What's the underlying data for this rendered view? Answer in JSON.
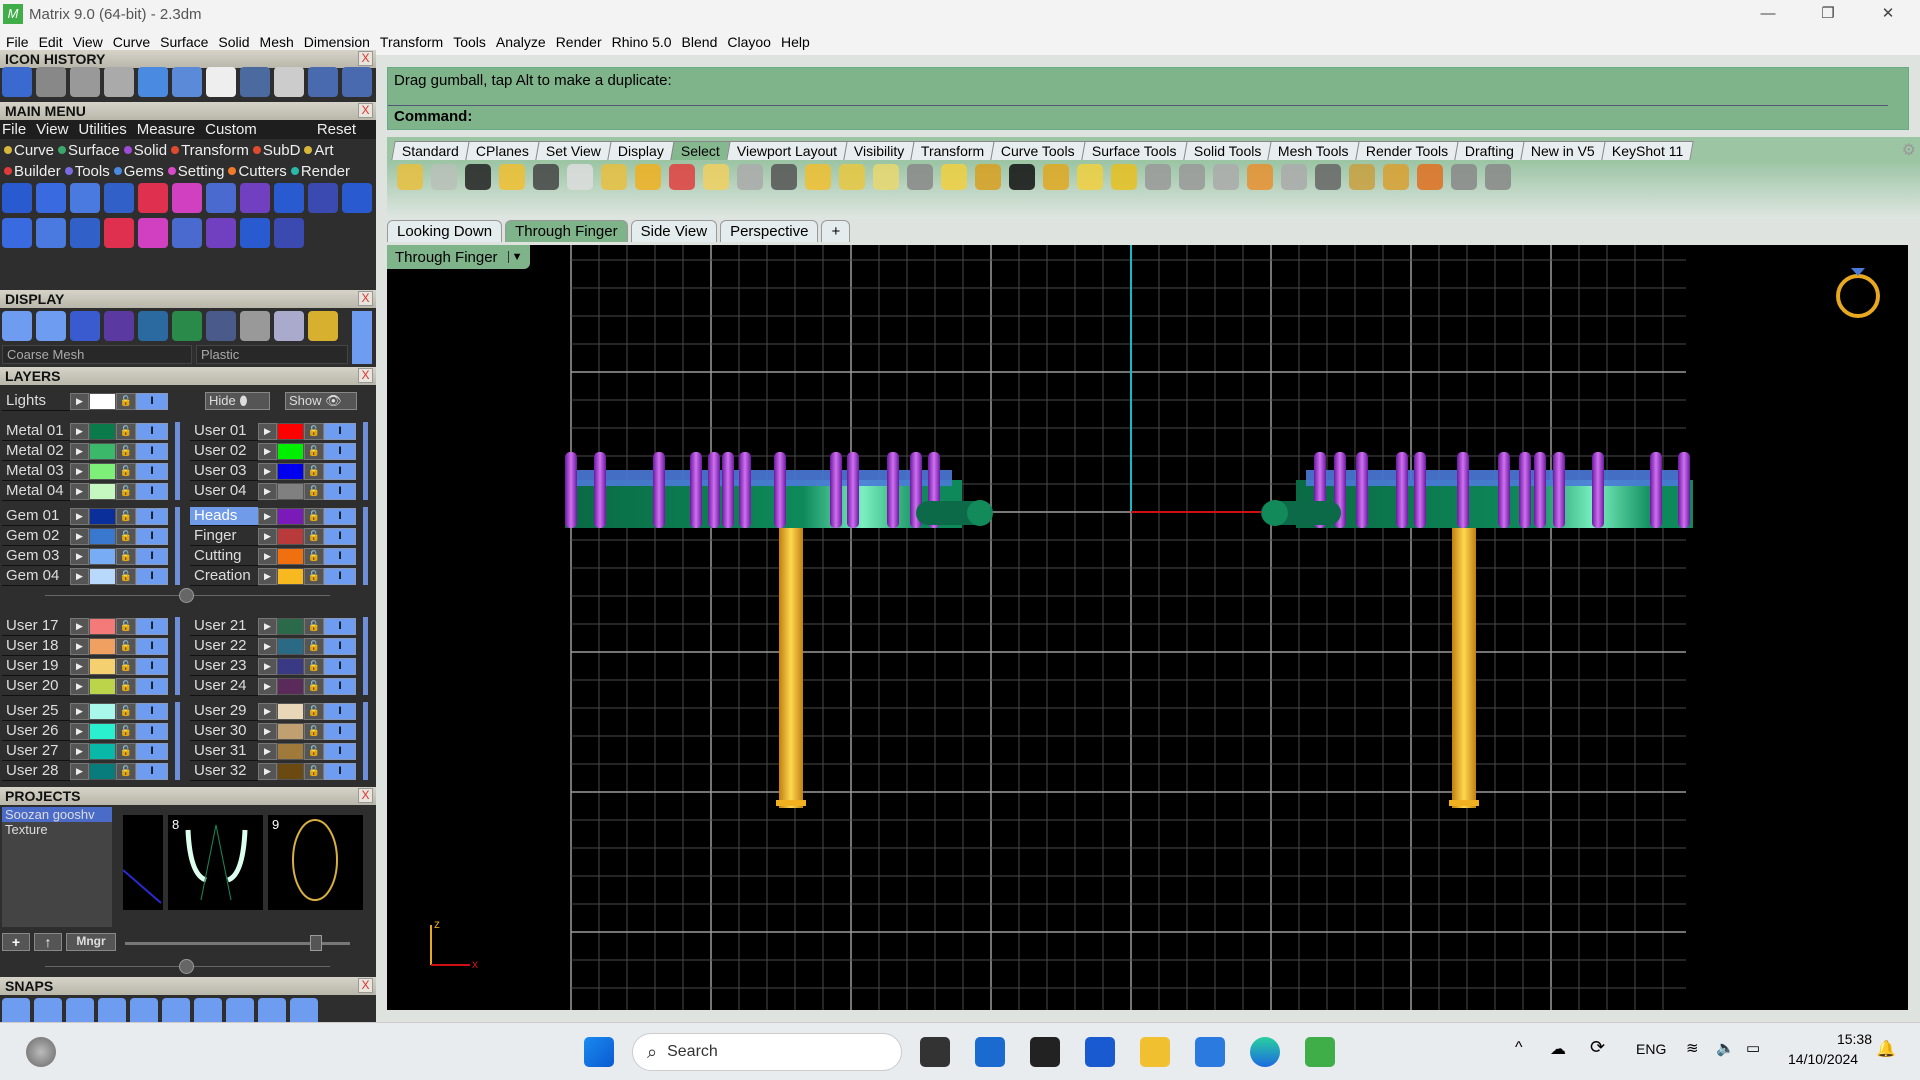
{
  "window": {
    "title": "Matrix 9.0 (64-bit) - 2.3dm",
    "min": "—",
    "max": "❐",
    "close": "✕"
  },
  "menubar": [
    "File",
    "Edit",
    "View",
    "Curve",
    "Surface",
    "Solid",
    "Mesh",
    "Dimension",
    "Transform",
    "Tools",
    "Analyze",
    "Render",
    "Rhino 5.0",
    "Blend",
    "Clayoo",
    "Help"
  ],
  "panels": {
    "icon_history": "ICON HISTORY",
    "main_menu": "MAIN MENU",
    "display": "DISPLAY",
    "layers": "LAYERS",
    "projects": "PROJECTS",
    "snaps": "SNAPS",
    "close": "X"
  },
  "main_menu": {
    "row": [
      "File",
      "View",
      "Utilities",
      "Measure",
      "Custom"
    ],
    "reset": "Reset",
    "categories1": [
      {
        "label": "Curve",
        "color": "#d8b63a"
      },
      {
        "label": "Surface",
        "color": "#3aa86b"
      },
      {
        "label": "Solid",
        "color": "#a04ad8"
      },
      {
        "label": "Transform",
        "color": "#e24a2e"
      },
      {
        "label": "SubD",
        "color": "#e24a2e"
      },
      {
        "label": "Art",
        "color": "#d8b63a"
      }
    ],
    "categories2": [
      {
        "label": "Builder",
        "color": "#e23a3a"
      },
      {
        "label": "Tools",
        "color": "#7b6ae0"
      },
      {
        "label": "Gems",
        "color": "#4a8ae0"
      },
      {
        "label": "Setting",
        "color": "#d84ac8"
      },
      {
        "label": "Cutters",
        "color": "#f07a2a"
      },
      {
        "label": "Render",
        "color": "#2ab8a8"
      }
    ]
  },
  "display": {
    "mesh": "Coarse Mesh",
    "material": "Plastic"
  },
  "layers": {
    "hide": "Hide",
    "show": "Show",
    "lights": {
      "name": "Lights",
      "color": "#ffffff"
    },
    "left": [
      [
        {
          "name": "Metal 01",
          "color": "#0b7a4a"
        },
        {
          "name": "Metal 02",
          "color": "#3cb86a"
        },
        {
          "name": "Metal 03",
          "color": "#7ef07a"
        },
        {
          "name": "Metal 04",
          "color": "#c4f8c0"
        }
      ],
      [
        {
          "name": "Gem 01",
          "color": "#0a2f9a"
        },
        {
          "name": "Gem 02",
          "color": "#3a78d0"
        },
        {
          "name": "Gem 03",
          "color": "#78acf4"
        },
        {
          "name": "Gem 04",
          "color": "#b8d8fc"
        }
      ],
      [
        {
          "name": "User 17",
          "color": "#f47a7a"
        },
        {
          "name": "User 18",
          "color": "#f0a060"
        },
        {
          "name": "User 19",
          "color": "#f4d070"
        },
        {
          "name": "User 20",
          "color": "#bcd44a"
        }
      ],
      [
        {
          "name": "User 25",
          "color": "#aaf8ec"
        },
        {
          "name": "User 26",
          "color": "#2af0d0"
        },
        {
          "name": "User 27",
          "color": "#0ab8a8"
        },
        {
          "name": "User 28",
          "color": "#087c7c"
        }
      ]
    ],
    "right": [
      [
        {
          "name": "User 01",
          "color": "#ff0000"
        },
        {
          "name": "User 02",
          "color": "#00ee00"
        },
        {
          "name": "User 03",
          "color": "#0000ee"
        },
        {
          "name": "User 04",
          "color": "#808080"
        }
      ],
      [
        {
          "name": "Heads",
          "color": "#7a1ab8",
          "selected": true
        },
        {
          "name": "Finger",
          "color": "#b83a3a"
        },
        {
          "name": "Cutting",
          "color": "#f07010"
        },
        {
          "name": "Creation",
          "color": "#f8b820"
        }
      ],
      [
        {
          "name": "User 21",
          "color": "#2a6a4a"
        },
        {
          "name": "User 22",
          "color": "#2a6a84"
        },
        {
          "name": "User 23",
          "color": "#3a3a84"
        },
        {
          "name": "User 24",
          "color": "#5a2a5a"
        }
      ],
      [
        {
          "name": "User 29",
          "color": "#e8d8b8"
        },
        {
          "name": "User 30",
          "color": "#c0a070"
        },
        {
          "name": "User 31",
          "color": "#a07a3a"
        },
        {
          "name": "User 32",
          "color": "#6a4a10"
        }
      ]
    ]
  },
  "projects": {
    "items": [
      "Soozan gooshv",
      "Texture"
    ],
    "thumb_labels": [
      "8",
      "9"
    ],
    "mngr": "Mngr"
  },
  "command": {
    "prompt": "Drag gumball, tap Alt to make a duplicate:",
    "label": "Command:"
  },
  "toolbar_tabs": [
    {
      "label": "Standard"
    },
    {
      "label": "CPlanes"
    },
    {
      "label": "Set View"
    },
    {
      "label": "Display"
    },
    {
      "label": "Select",
      "active": true
    },
    {
      "label": "Viewport Layout"
    },
    {
      "label": "Visibility"
    },
    {
      "label": "Transform"
    },
    {
      "label": "Curve Tools"
    },
    {
      "label": "Surface Tools"
    },
    {
      "label": "Solid Tools"
    },
    {
      "label": "Mesh Tools"
    },
    {
      "label": "Render Tools"
    },
    {
      "label": "Drafting"
    },
    {
      "label": "New in V5"
    },
    {
      "label": "KeyShot 11"
    }
  ],
  "viewport_tabs": [
    {
      "label": "Looking Down"
    },
    {
      "label": "Through Finger",
      "active": true
    },
    {
      "label": "Side View"
    },
    {
      "label": "Perspective"
    },
    {
      "label": "+"
    }
  ],
  "viewport": {
    "name": "Through Finger",
    "axis_z": "z",
    "axis_x": "x",
    "colors": {
      "band": "#0e8a5a",
      "gems": "#4a7ad8",
      "prongs": "#9a2ad0",
      "shank": "#f0b020"
    }
  },
  "taskbar": {
    "search": "Search",
    "lang": "ENG",
    "time": "15:38",
    "date": "14/10/2024"
  }
}
